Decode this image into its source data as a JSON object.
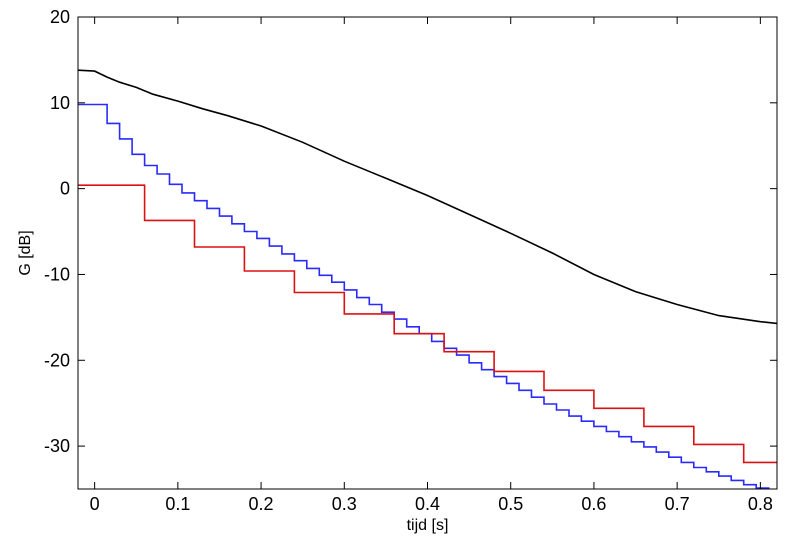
{
  "chart_data": {
    "type": "line",
    "title": "",
    "xlabel": "tijd  [s]",
    "ylabel": "G  [dB]",
    "xlim": [
      -0.02,
      0.82
    ],
    "ylim": [
      -35,
      20
    ],
    "xticks": [
      0,
      0.1,
      0.2,
      0.3,
      0.4,
      0.5,
      0.6,
      0.7,
      0.8
    ],
    "xtick_labels": [
      "0",
      "0.1",
      "0.2",
      "0.3",
      "0.4",
      "0.5",
      "0.6",
      "0.7",
      "0.8"
    ],
    "yticks": [
      20,
      10,
      0,
      -10,
      -20,
      -30
    ],
    "ytick_labels": [
      "20",
      "10",
      "0",
      "-10",
      "-20",
      "-30"
    ],
    "grid": false,
    "legend": "none",
    "series": [
      {
        "color": "#000000",
        "step": false,
        "x": [
          -0.02,
          0.0,
          0.015,
          0.03,
          0.05,
          0.07,
          0.1,
          0.13,
          0.16,
          0.2,
          0.25,
          0.3,
          0.35,
          0.4,
          0.45,
          0.5,
          0.55,
          0.6,
          0.65,
          0.7,
          0.75,
          0.8,
          0.82
        ],
        "y": [
          13.8,
          13.7,
          13.0,
          12.4,
          11.8,
          11.0,
          10.2,
          9.3,
          8.5,
          7.3,
          5.4,
          3.2,
          1.2,
          -0.8,
          -3.0,
          -5.2,
          -7.5,
          -10.0,
          -12.0,
          -13.5,
          -14.8,
          -15.5,
          -15.7
        ]
      },
      {
        "color": "#2a2aff",
        "step": true,
        "x": [
          -0.02,
          0.0,
          0.015,
          0.03,
          0.045,
          0.06,
          0.075,
          0.09,
          0.105,
          0.12,
          0.135,
          0.15,
          0.165,
          0.18,
          0.195,
          0.21,
          0.225,
          0.24,
          0.255,
          0.27,
          0.285,
          0.3,
          0.315,
          0.33,
          0.345,
          0.36,
          0.375,
          0.39,
          0.405,
          0.42,
          0.435,
          0.45,
          0.465,
          0.48,
          0.495,
          0.51,
          0.525,
          0.54,
          0.555,
          0.57,
          0.585,
          0.6,
          0.615,
          0.63,
          0.645,
          0.66,
          0.675,
          0.69,
          0.705,
          0.72,
          0.735,
          0.75,
          0.765,
          0.78,
          0.795,
          0.81,
          0.82
        ],
        "y": [
          9.8,
          9.8,
          7.6,
          5.8,
          4.0,
          2.7,
          1.7,
          0.5,
          -0.5,
          -1.4,
          -2.3,
          -3.2,
          -4.1,
          -5.0,
          -5.8,
          -6.7,
          -7.6,
          -8.4,
          -9.3,
          -10.1,
          -10.9,
          -11.8,
          -12.7,
          -13.5,
          -14.4,
          -15.2,
          -16.1,
          -16.9,
          -17.8,
          -18.6,
          -19.4,
          -20.3,
          -21.1,
          -21.9,
          -22.7,
          -23.5,
          -24.3,
          -25.1,
          -25.8,
          -26.5,
          -27.1,
          -27.7,
          -28.3,
          -28.9,
          -29.5,
          -30.1,
          -30.7,
          -31.3,
          -31.9,
          -32.5,
          -33.0,
          -33.5,
          -34.0,
          -34.5,
          -34.9,
          -35.2,
          -35.2
        ]
      },
      {
        "color": "#dd1111",
        "step": true,
        "x": [
          -0.02,
          0.0,
          0.06,
          0.12,
          0.18,
          0.24,
          0.3,
          0.36,
          0.42,
          0.48,
          0.54,
          0.6,
          0.66,
          0.72,
          0.78,
          0.82
        ],
        "y": [
          0.4,
          0.4,
          -3.7,
          -6.8,
          -9.6,
          -12.1,
          -14.6,
          -16.9,
          -19.0,
          -21.3,
          -23.5,
          -25.6,
          -27.7,
          -29.8,
          -31.9,
          -31.9
        ]
      }
    ]
  }
}
